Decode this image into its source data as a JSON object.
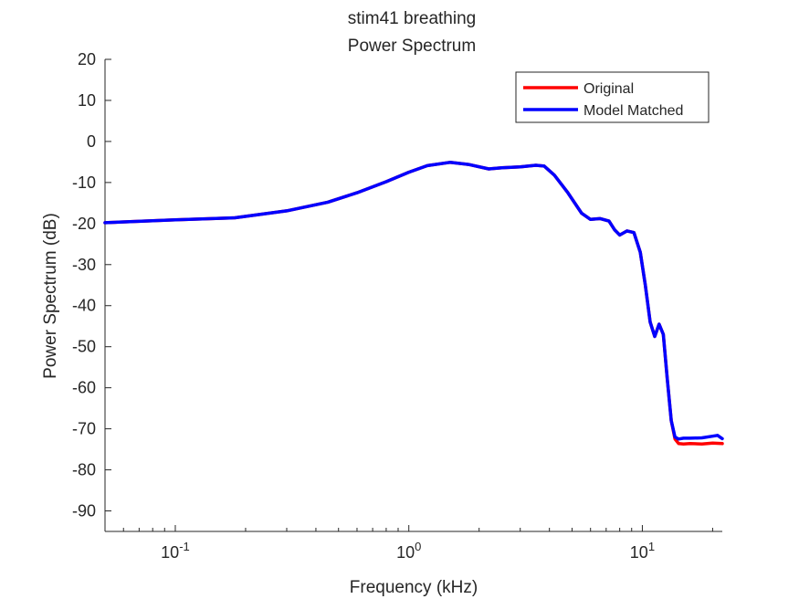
{
  "chart_data": {
    "type": "line",
    "title": [
      "stim41 breathing",
      "Power Spectrum"
    ],
    "xlabel": "Frequency (kHz)",
    "ylabel": "Power Spectrum (dB)",
    "xscale": "log",
    "xlim": [
      0.05,
      22
    ],
    "ylim": [
      -95,
      20
    ],
    "yticks": [
      20,
      10,
      0,
      -10,
      -20,
      -30,
      -40,
      -50,
      -60,
      -70,
      -80,
      -90
    ],
    "xticks": [
      {
        "value": 0.1,
        "base": "10",
        "exp": "-1"
      },
      {
        "value": 1,
        "base": "10",
        "exp": "0"
      },
      {
        "value": 10,
        "base": "10",
        "exp": "1"
      }
    ],
    "grid": false,
    "legend_position": "top-right",
    "series": [
      {
        "name": "Original",
        "color": "#ff0000",
        "x": [
          0.05,
          0.1,
          0.18,
          0.3,
          0.45,
          0.6,
          0.8,
          1.0,
          1.2,
          1.5,
          1.8,
          2.2,
          2.5,
          3.0,
          3.5,
          3.8,
          4.2,
          4.8,
          5.5,
          6.0,
          6.6,
          7.2,
          7.6,
          8.0,
          8.6,
          9.2,
          9.8,
          10.3,
          10.8,
          11.3,
          11.8,
          12.3,
          12.8,
          13.3,
          13.8,
          14.3,
          15.0,
          16.0,
          18.0,
          20.0,
          22.0
        ],
        "y": [
          -19.8,
          -19.1,
          -18.6,
          -16.9,
          -14.8,
          -12.5,
          -9.8,
          -7.5,
          -5.9,
          -5.1,
          -5.6,
          -6.7,
          -6.4,
          -6.2,
          -5.8,
          -6.0,
          -8.2,
          -12.5,
          -17.5,
          -19.0,
          -18.8,
          -19.4,
          -21.5,
          -22.8,
          -21.8,
          -22.2,
          -27.0,
          -35.0,
          -44.0,
          -47.5,
          -44.5,
          -47.0,
          -58.0,
          -68.0,
          -72.5,
          -73.6,
          -73.7,
          -73.6,
          -73.7,
          -73.5,
          -73.6
        ]
      },
      {
        "name": "Model Matched",
        "color": "#0000ff",
        "x": [
          0.05,
          0.1,
          0.18,
          0.3,
          0.45,
          0.6,
          0.8,
          1.0,
          1.2,
          1.5,
          1.8,
          2.2,
          2.5,
          3.0,
          3.5,
          3.8,
          4.2,
          4.8,
          5.5,
          6.0,
          6.6,
          7.2,
          7.6,
          8.0,
          8.6,
          9.2,
          9.8,
          10.3,
          10.8,
          11.3,
          11.8,
          12.3,
          12.8,
          13.3,
          13.8,
          14.3,
          15.0,
          16.0,
          18.0,
          20.0,
          21.0,
          22.0
        ],
        "y": [
          -19.8,
          -19.1,
          -18.6,
          -16.9,
          -14.8,
          -12.5,
          -9.8,
          -7.5,
          -5.9,
          -5.1,
          -5.6,
          -6.7,
          -6.4,
          -6.2,
          -5.8,
          -6.0,
          -8.2,
          -12.5,
          -17.5,
          -19.0,
          -18.8,
          -19.4,
          -21.5,
          -22.8,
          -21.8,
          -22.2,
          -27.0,
          -35.0,
          -44.0,
          -47.5,
          -44.5,
          -47.0,
          -58.0,
          -68.0,
          -72.0,
          -72.5,
          -72.3,
          -72.3,
          -72.2,
          -71.8,
          -71.6,
          -72.4
        ]
      }
    ]
  }
}
